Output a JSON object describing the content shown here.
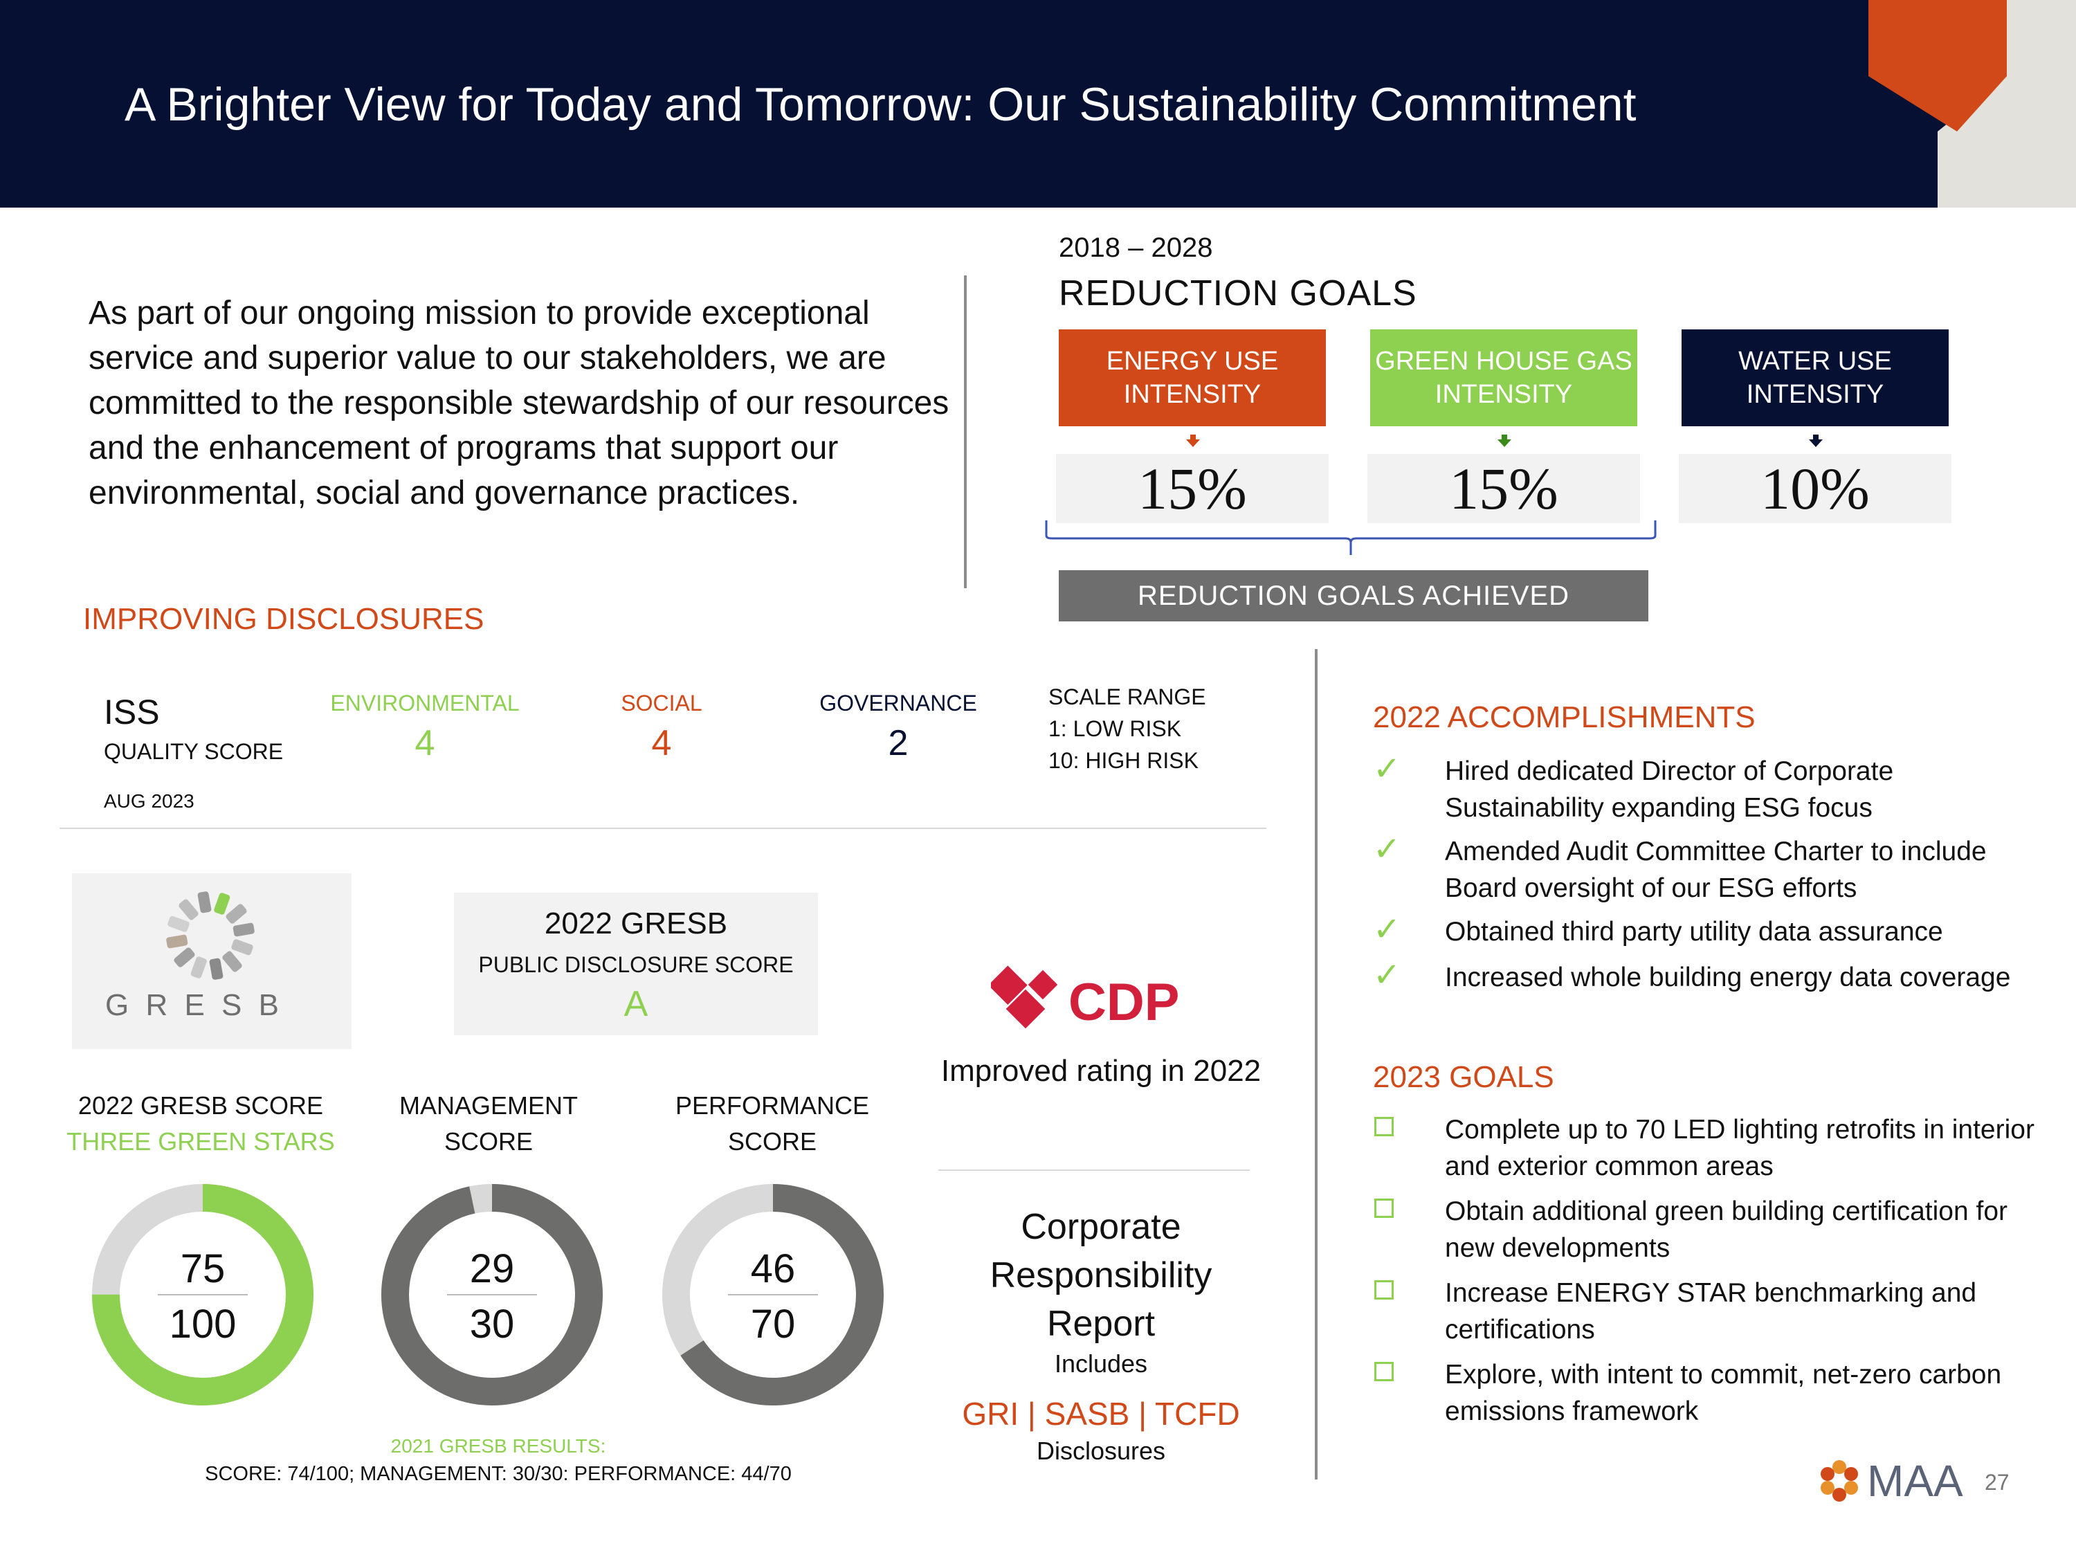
{
  "title": "A Brighter View for Today and Tomorrow: Our Sustainability Commitment",
  "mission": "As part of our ongoing mission to provide exceptional service and superior value to our stakeholders, we are committed to the responsible stewardship of our resources and the enhancement of programs that support our environmental, social and governance practices.",
  "reduction": {
    "years": "2018 – 2028",
    "heading": "REDUCTION GOALS",
    "goals": [
      {
        "label": "ENERGY USE INTENSITY",
        "value": "15%",
        "color": "#d14918"
      },
      {
        "label": "GREEN HOUSE GAS INTENSITY",
        "value": "15%",
        "color": "#8ed04f"
      },
      {
        "label": "WATER USE INTENSITY",
        "value": "10%",
        "color": "#061033"
      }
    ],
    "achieved": "REDUCTION GOALS ACHIEVED"
  },
  "disclosures": {
    "heading": "IMPROVING DISCLOSURES",
    "iss": "ISS",
    "quality": "QUALITY SCORE",
    "date": "AUG 2023",
    "categories": [
      {
        "label": "ENVIRONMENTAL",
        "value": "4"
      },
      {
        "label": "SOCIAL",
        "value": "4"
      },
      {
        "label": "GOVERNANCE",
        "value": "2"
      }
    ],
    "scale": [
      "SCALE RANGE",
      "1: LOW RISK",
      "10: HIGH RISK"
    ]
  },
  "gresb": {
    "logo_text": "G R E S B",
    "box_title": "2022 GRESB",
    "box_sub": "PUBLIC DISCLOSURE SCORE",
    "box_grade": "A",
    "score_label": "2022 GRESB SCORE",
    "stars": "THREE GREEN STARS",
    "management_label": [
      "MANAGEMENT",
      "SCORE"
    ],
    "performance_label": [
      "PERFORMANCE",
      "SCORE"
    ],
    "donuts": [
      {
        "value": 75,
        "total": 100,
        "value_text": "75",
        "total_text": "100",
        "color": "#8ed04f"
      },
      {
        "value": 29,
        "total": 30,
        "value_text": "29",
        "total_text": "30",
        "color": "#6d6e6c"
      },
      {
        "value": 46,
        "total": 70,
        "value_text": "46",
        "total_text": "70",
        "color": "#6d6e6c"
      }
    ],
    "results_2021": "2021 GRESB RESULTS:",
    "results_2021_detail": "SCORE: 74/100; MANAGEMENT: 30/30: PERFORMANCE: 44/70"
  },
  "cdp": {
    "logo_text": "CDP",
    "rating": "Improved rating in 2022"
  },
  "csr": {
    "title": "Corporate Responsibility Report",
    "includes": "Includes",
    "frameworks": "GRI | SASB | TCFD",
    "disclosures": "Disclosures"
  },
  "accomplishments": {
    "heading": "2022 ACCOMPLISHMENTS",
    "items": [
      "Hired dedicated Director of Corporate Sustainability expanding ESG focus",
      "Amended Audit Committee Charter to include Board oversight of our ESG efforts",
      "Obtained third party utility data assurance",
      "Increased whole building energy data coverage"
    ]
  },
  "goals_2023": {
    "heading": "2023 GOALS",
    "items": [
      "Complete up to 70 LED lighting retrofits in interior and exterior common areas",
      "Obtain additional green building certification for new developments",
      "Increase ENERGY STAR benchmarking and certifications",
      "Explore, with intent to commit, net-zero carbon emissions framework"
    ]
  },
  "footer": {
    "logo_text": "MAA",
    "page": "27"
  },
  "icons": {
    "check": "checkmark-icon",
    "box": "checkbox-empty-icon"
  }
}
